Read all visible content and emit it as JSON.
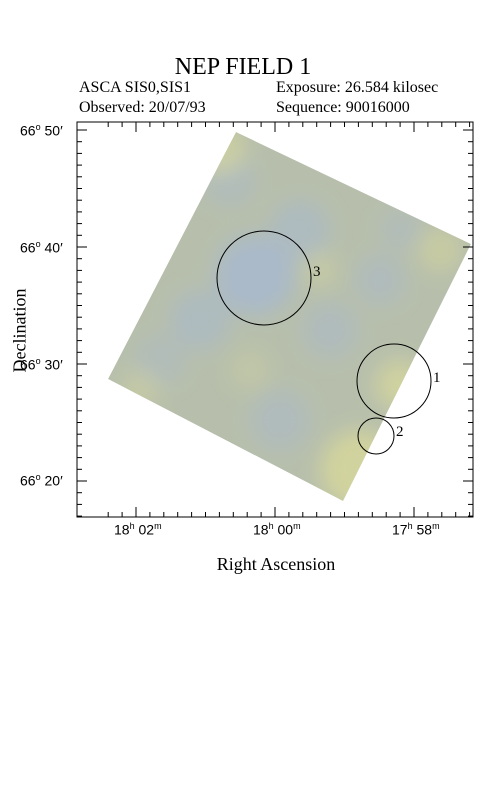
{
  "header": {
    "title": "NEP FIELD 1",
    "instrument": "ASCA SIS0,SIS1",
    "exposure": "Exposure: 26.584 kilosec",
    "observed": "Observed: 20/07/93",
    "sequence": "Sequence: 90016000"
  },
  "axes": {
    "ylabel": "Declination",
    "xlabel": "Right Ascension",
    "yticks": [
      {
        "deg": "66",
        "min": "50"
      },
      {
        "deg": "66",
        "min": "40"
      },
      {
        "deg": "66",
        "min": "30"
      },
      {
        "deg": "66",
        "min": "20"
      }
    ],
    "xticks": [
      {
        "h": "18",
        "m": "02"
      },
      {
        "h": "18",
        "m": "00"
      },
      {
        "h": "17",
        "m": "58"
      }
    ]
  },
  "sources": [
    {
      "label": "1"
    },
    {
      "label": "2"
    },
    {
      "label": "3"
    }
  ],
  "colors": {
    "field_base": "#b7bfac",
    "field_blue": "#a9b9cc",
    "field_yellow": "#d8d89a",
    "frame": "#000000"
  }
}
